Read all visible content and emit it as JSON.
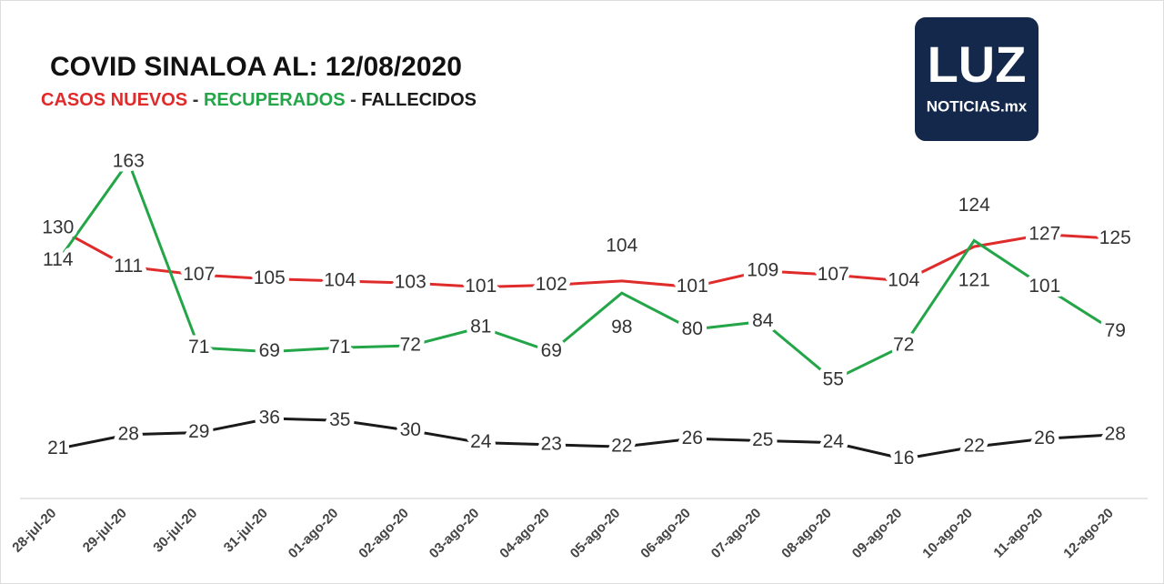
{
  "chart_data": {
    "type": "line",
    "title": "COVID SINALOA AL: 12/08/2020",
    "subtitle_separator": "-",
    "categories": [
      "28-jul-20",
      "29-jul-20",
      "30-jul-20",
      "31-jul-20",
      "01-ago-20",
      "02-ago-20",
      "03-ago-20",
      "04-ago-20",
      "05-ago-20",
      "06-ago-20",
      "07-ago-20",
      "08-ago-20",
      "09-ago-20",
      "10-ago-20",
      "11-ago-20",
      "12-ago-20"
    ],
    "series": [
      {
        "name": "CASOS NUEVOS",
        "color": "#e02b2b",
        "values": [
          130,
          111,
          107,
          105,
          104,
          103,
          101,
          102,
          104,
          101,
          109,
          107,
          104,
          121,
          127,
          125
        ]
      },
      {
        "name": "RECUPERADOS",
        "color": "#23a548",
        "values": [
          114,
          163,
          71,
          69,
          71,
          72,
          81,
          69,
          98,
          80,
          84,
          55,
          72,
          124,
          101,
          79
        ]
      },
      {
        "name": "FALLECIDOS",
        "color": "#1a1a1a",
        "values": [
          21,
          28,
          29,
          36,
          35,
          30,
          24,
          23,
          22,
          26,
          25,
          24,
          16,
          22,
          26,
          28
        ]
      }
    ],
    "ylim": [
      0,
      180
    ]
  },
  "logo": {
    "main": "LUZ",
    "sub": "NOTICIAS.mx"
  }
}
